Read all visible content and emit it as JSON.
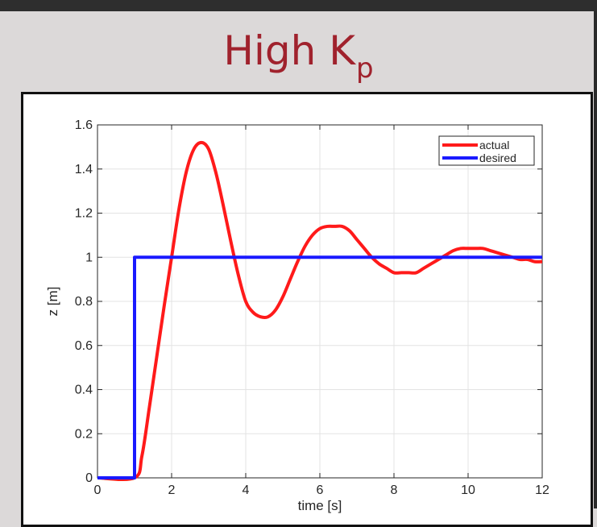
{
  "slide": {
    "title_main": "High K",
    "title_sub": "p"
  },
  "chart_data": {
    "type": "line",
    "xlabel": "time [s]",
    "ylabel": "z [m]",
    "xlim": [
      0,
      12
    ],
    "ylim": [
      0,
      1.6
    ],
    "x_ticks": [
      0,
      2,
      4,
      6,
      8,
      10,
      12
    ],
    "y_ticks": [
      0,
      0.2,
      0.4,
      0.6,
      0.8,
      1,
      1.2,
      1.4,
      1.6
    ],
    "x_tick_labels": [
      "0",
      "2",
      "4",
      "6",
      "8",
      "10",
      "12"
    ],
    "y_tick_labels": [
      "0",
      "0.2",
      "0.4",
      "0.6",
      "0.8",
      "1",
      "1.2",
      "1.4",
      "1.6"
    ],
    "grid": true,
    "legend_position": "top-right",
    "series": [
      {
        "name": "actual",
        "color": "#ff1a1a",
        "x": [
          0,
          1.0,
          1.2,
          1.4,
          1.6,
          1.8,
          2.0,
          2.2,
          2.4,
          2.6,
          2.8,
          3.0,
          3.2,
          3.4,
          3.6,
          3.8,
          4.0,
          4.2,
          4.4,
          4.6,
          4.8,
          5.0,
          5.2,
          5.4,
          5.6,
          5.8,
          6.0,
          6.2,
          6.4,
          6.6,
          6.8,
          7.0,
          7.2,
          7.4,
          7.6,
          7.8,
          8.0,
          8.2,
          8.4,
          8.6,
          8.8,
          9.0,
          9.2,
          9.4,
          9.6,
          9.8,
          10.0,
          10.2,
          10.4,
          10.6,
          10.8,
          11.0,
          11.2,
          11.4,
          11.6,
          11.8,
          12.0
        ],
        "y": [
          0,
          0,
          0.1,
          0.32,
          0.55,
          0.78,
          1.0,
          1.22,
          1.39,
          1.49,
          1.52,
          1.49,
          1.38,
          1.23,
          1.07,
          0.92,
          0.8,
          0.75,
          0.73,
          0.73,
          0.76,
          0.82,
          0.9,
          0.98,
          1.05,
          1.1,
          1.13,
          1.14,
          1.14,
          1.14,
          1.12,
          1.08,
          1.04,
          1.0,
          0.97,
          0.95,
          0.93,
          0.93,
          0.93,
          0.93,
          0.95,
          0.97,
          0.99,
          1.01,
          1.03,
          1.04,
          1.04,
          1.04,
          1.04,
          1.03,
          1.02,
          1.01,
          1.0,
          0.99,
          0.99,
          0.98,
          0.98
        ]
      },
      {
        "name": "desired",
        "color": "#1a1aff",
        "x": [
          0,
          1.0,
          1.0,
          12
        ],
        "y": [
          0,
          0,
          1,
          1
        ]
      }
    ]
  }
}
